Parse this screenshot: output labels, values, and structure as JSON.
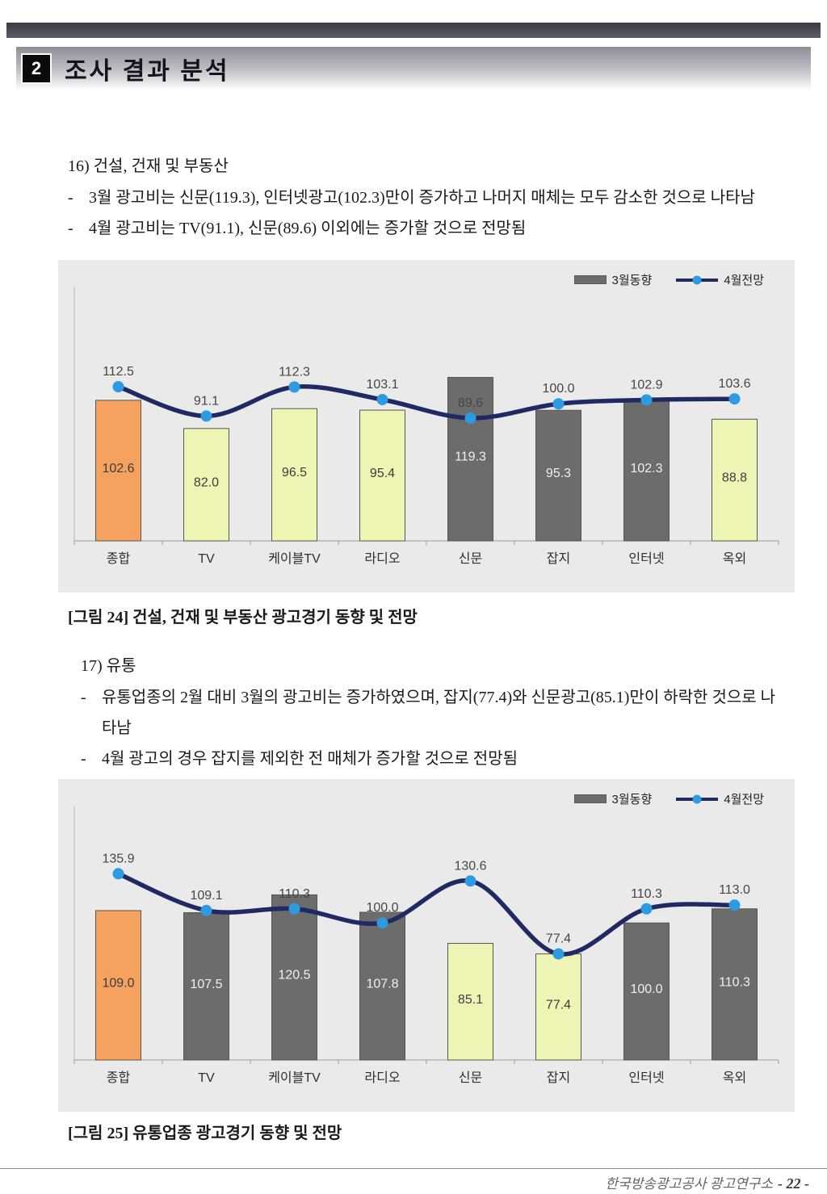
{
  "page": {
    "section_number": "2",
    "section_title": "조사 결과 분석",
    "bullet_marker": "-",
    "footer": {
      "org": "한국방송광고공사 광고연구소",
      "page_label": "- 22 -"
    }
  },
  "section16": {
    "heading": "16) 건설, 건재 및 부동산",
    "bullets": [
      "3월 광고비는 신문(119.3), 인터넷광고(102.3)만이 증가하고 나머지 매체는 모두 감소한 것으로 나타남",
      "4월 광고비는 TV(91.1), 신문(89.6) 이외에는 증가할 것으로 전망됨"
    ],
    "caption": "[그림 24] 건설, 건재 및 부동산 광고경기 동향 및 전망"
  },
  "section17": {
    "heading": "17) 유통",
    "bullets": [
      "유통업종의 2월 대비 3월의 광고비는 증가하였으며, 잡지(77.4)와 신문광고(85.1)만이 하락한 것으로 나타남",
      "4월 광고의 경우 잡지를 제외한 전 매체가 증가할 것으로 전망됨"
    ],
    "caption": "[그림 25] 유통업종 광고경기 동향 및 전망"
  },
  "palette": {
    "orange": "#F5A15F",
    "light": "#EEF5B4",
    "dark": "#6C6C6C",
    "line": "#1F2A63",
    "marker": "#2E9BE0",
    "chart_bg": "#EAEAEA"
  },
  "chart_data": [
    {
      "type": "bar",
      "title": "건설, 건재 및 부동산 광고경기 동향 및 전망",
      "categories": [
        "종합",
        "TV",
        "케이블TV",
        "라디오",
        "신문",
        "잡지",
        "인터넷",
        "옥외"
      ],
      "series": [
        {
          "name": "3월동향",
          "type": "bar",
          "values": [
            102.6,
            82.0,
            96.5,
            95.4,
            119.3,
            95.3,
            102.3,
            88.8
          ],
          "bar_styles": [
            "orange",
            "light",
            "light",
            "light",
            "dark",
            "dark",
            "dark",
            "light"
          ]
        },
        {
          "name": "4월전망",
          "type": "line",
          "values": [
            112.5,
            91.1,
            112.3,
            103.1,
            89.6,
            100.0,
            102.9,
            103.6
          ]
        }
      ],
      "ylim": [
        0,
        205
      ],
      "legend_position": "top-right",
      "grid": false
    },
    {
      "type": "bar",
      "title": "유통업종 광고경기 동향 및 전망",
      "categories": [
        "종합",
        "TV",
        "케이블TV",
        "라디오",
        "신문",
        "잡지",
        "인터넷",
        "옥외"
      ],
      "series": [
        {
          "name": "3월동향",
          "type": "bar",
          "values": [
            109.0,
            107.5,
            120.5,
            107.8,
            85.1,
            77.4,
            100.0,
            110.3
          ],
          "bar_styles": [
            "orange",
            "dark",
            "dark",
            "dark",
            "light",
            "light",
            "dark",
            "dark"
          ]
        },
        {
          "name": "4월전망",
          "type": "line",
          "values": [
            135.9,
            109.1,
            110.3,
            100.0,
            130.6,
            77.4,
            110.3,
            113.0
          ]
        }
      ],
      "ylim": [
        0,
        205
      ],
      "legend_position": "top-right",
      "grid": false
    }
  ]
}
